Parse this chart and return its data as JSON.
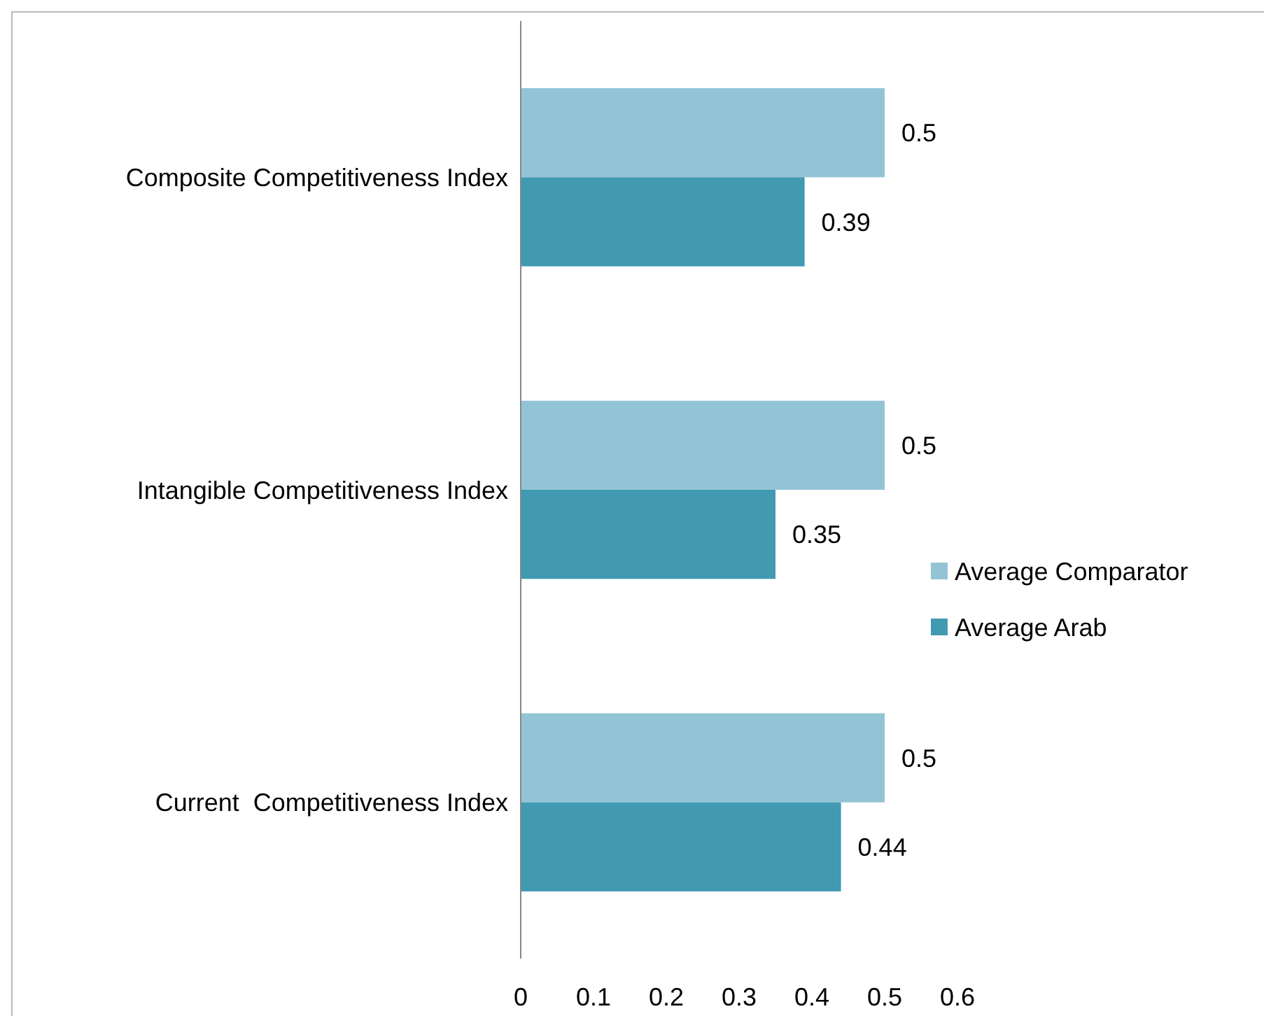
{
  "chart_data": {
    "type": "bar",
    "orientation": "horizontal",
    "categories": [
      "Composite Competitiveness Index",
      "Intangible Competitiveness Index",
      "Current  Competitiveness Index"
    ],
    "series": [
      {
        "name": "Average Comparator",
        "color": "#93c4d6",
        "values": [
          0.5,
          0.5,
          0.5
        ]
      },
      {
        "name": "Average Arab",
        "color": "#4299b2",
        "values": [
          0.39,
          0.35,
          0.44
        ]
      }
    ],
    "xlim": [
      0,
      0.6
    ],
    "xticks": [
      0,
      0.1,
      0.2,
      0.3,
      0.4,
      0.5,
      0.6
    ],
    "data_labels": true,
    "legend": "right",
    "grid": false
  }
}
